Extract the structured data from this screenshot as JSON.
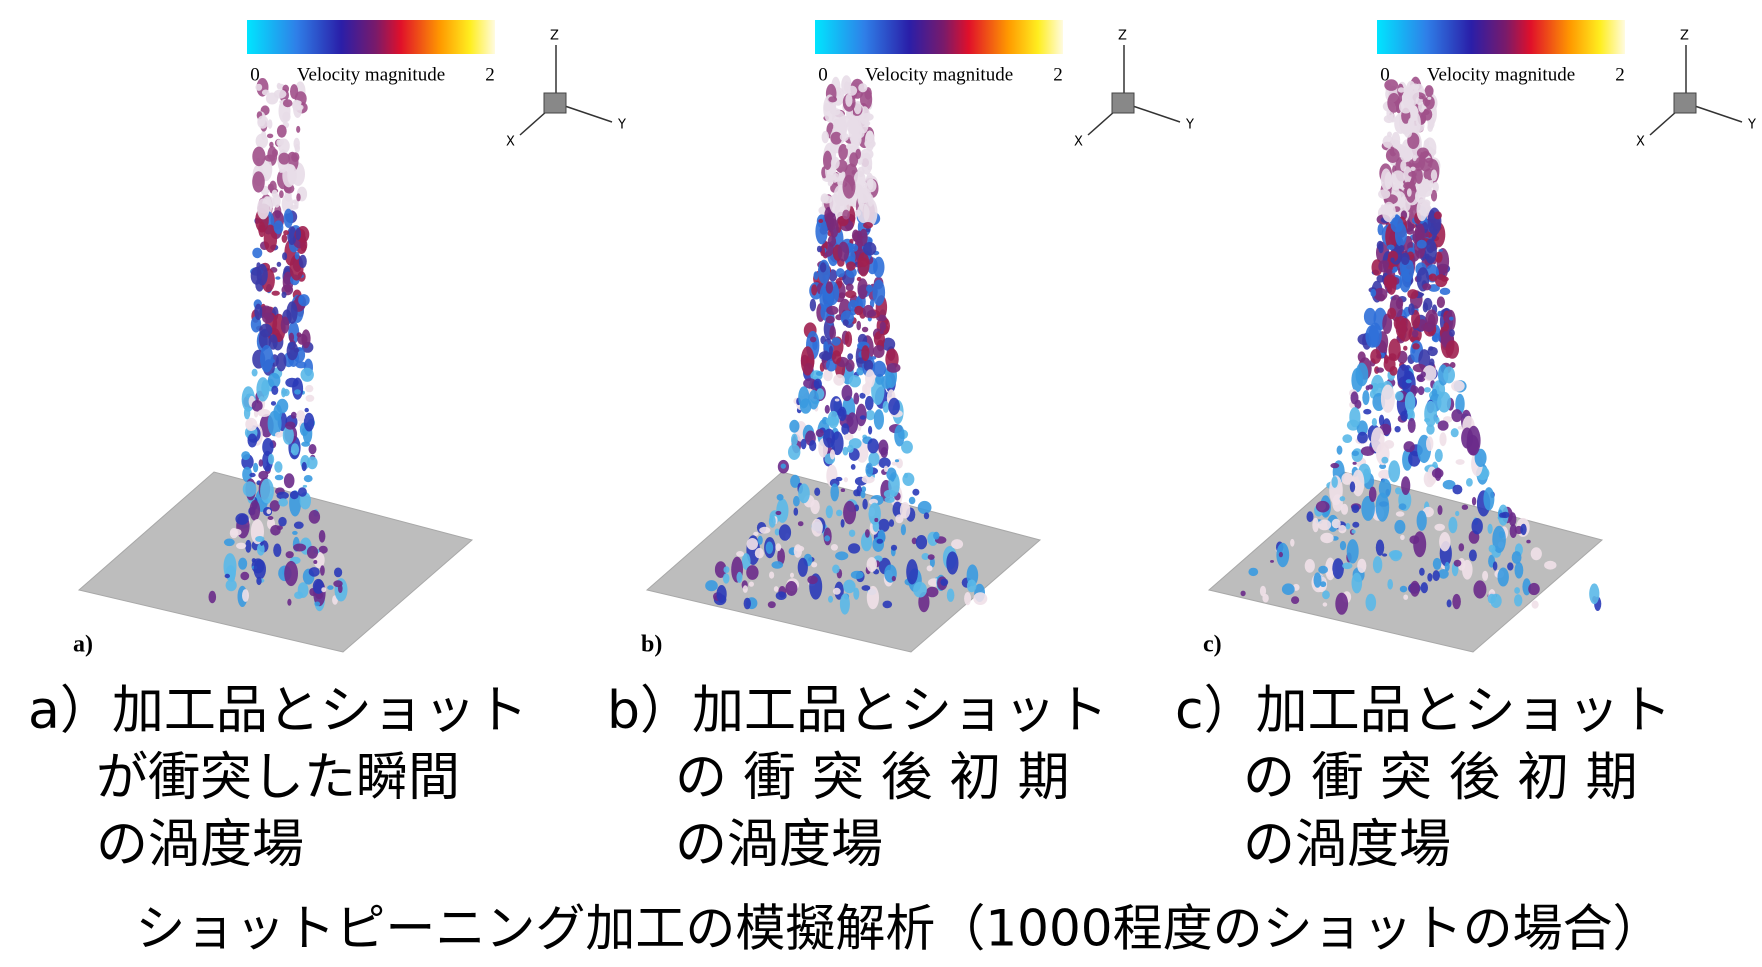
{
  "title": "ショットピーニング加工の模擬解析（1000程度のショットの場合）",
  "panels": [
    {
      "colorbar": {
        "min": 0,
        "label": "Velocity magnitude",
        "max": 2
      },
      "axes": {
        "z": "Z",
        "y": "Y",
        "x": "X"
      },
      "letter": "a)",
      "caption": [
        "a）加工品とショット",
        "が衝突した瞬間",
        "の渦度場"
      ]
    },
    {
      "colorbar": {
        "min": 0,
        "label": "Velocity magnitude",
        "max": 2
      },
      "axes": {
        "z": "Z",
        "y": "Y",
        "x": "X"
      },
      "letter": "b)",
      "caption": [
        "b）加工品とショット",
        "の 衝 突 後 初 期",
        "の渦度場"
      ]
    },
    {
      "colorbar": {
        "min": 0,
        "label": "Velocity magnitude",
        "max": 2
      },
      "axes": {
        "z": "Z",
        "y": "Y",
        "x": "X"
      },
      "letter": "c)",
      "caption": [
        "c）加工品とショット",
        "の 衝 突 後 初 期",
        "の渦度場"
      ]
    }
  ]
}
